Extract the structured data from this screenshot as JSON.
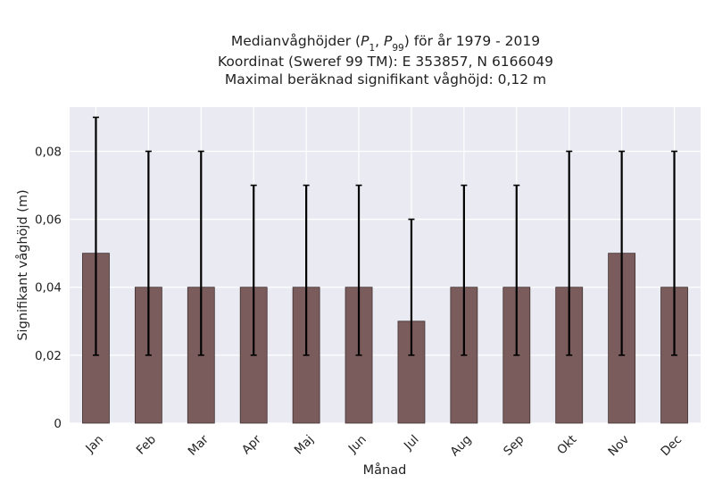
{
  "chart_data": {
    "type": "bar",
    "title_lines": [
      "Medianvåghöjder (P1, P99) för år 1979 - 2019",
      "Koordinat (Sweref 99 TM): E 353857, N 6166049",
      "Maximal beräknad signifikant våghöjd: 0,12 m"
    ],
    "title_math": {
      "prefix": "Medianvåghöjder (",
      "p_symbol": "P",
      "sub1": "1",
      "separator": ", ",
      "sub2": "99",
      "suffix": ") för år 1979 - 2019"
    },
    "xlabel": "Månad",
    "ylabel": "Signifikant våghöjd (m)",
    "categories": [
      "Jan",
      "Feb",
      "Mar",
      "Apr",
      "Maj",
      "Jun",
      "Jul",
      "Aug",
      "Sep",
      "Okt",
      "Nov",
      "Dec"
    ],
    "values": [
      0.05,
      0.04,
      0.04,
      0.04,
      0.04,
      0.04,
      0.03,
      0.04,
      0.04,
      0.04,
      0.05,
      0.04
    ],
    "error_low": [
      0.02,
      0.02,
      0.02,
      0.02,
      0.02,
      0.02,
      0.02,
      0.02,
      0.02,
      0.02,
      0.02,
      0.02
    ],
    "error_high": [
      0.09,
      0.08,
      0.08,
      0.07,
      0.07,
      0.07,
      0.06,
      0.07,
      0.07,
      0.08,
      0.08,
      0.08
    ],
    "ylim": [
      0,
      0.093
    ],
    "yticks": [
      0,
      0.02,
      0.04,
      0.06,
      0.08
    ],
    "ytick_labels": [
      "0",
      "0,02",
      "0,04",
      "0,06",
      "0,08"
    ],
    "grid": true,
    "colors": {
      "bar": "#7b5c5c",
      "bar_edge": "#3f3030",
      "plot_bg": "#eaeaf2",
      "grid": "#ffffff",
      "errorbar": "#000000"
    }
  }
}
